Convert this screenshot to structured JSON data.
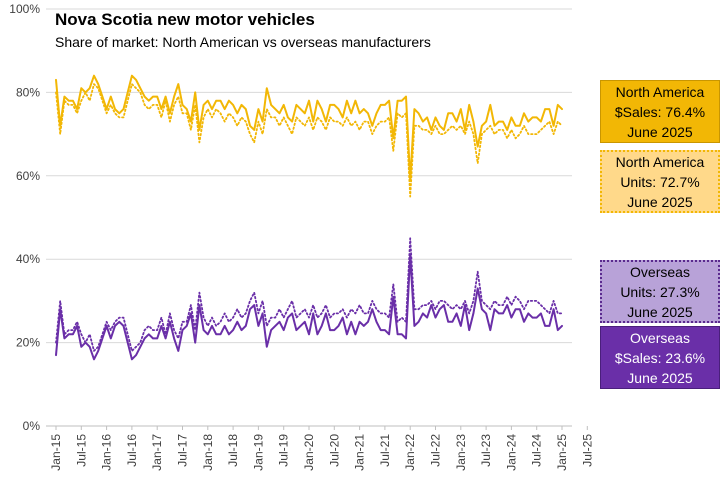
{
  "header": {
    "title": "Nova Scotia new motor vehicles",
    "subtitle": "Share of market: North American vs overseas manufacturers"
  },
  "boxes": {
    "na_sales": {
      "line1": "North America",
      "line2": "$Sales: 76.4%",
      "line3": "June 2025"
    },
    "na_units": {
      "line1": "North America",
      "line2": "Units: 72.7%",
      "line3": "June 2025"
    },
    "os_units": {
      "line1": "Overseas",
      "line2": "Units: 27.3%",
      "line3": "June 2025"
    },
    "os_sales": {
      "line1": "Overseas",
      "line2": "$Sales: 23.6%",
      "line3": "June 2025"
    }
  },
  "colors": {
    "na": "#F2B705",
    "overseas": "#6A2FA8",
    "grid": "#D9D9D9"
  },
  "chart_data": {
    "type": "line",
    "title": "Nova Scotia new motor vehicles",
    "subtitle": "Share of market: North American vs overseas manufacturers",
    "ylim": [
      0,
      100
    ],
    "yticks": [
      "0%",
      "20%",
      "40%",
      "60%",
      "80%",
      "100%"
    ],
    "ytick_values": [
      0,
      20,
      40,
      60,
      80,
      100
    ],
    "xlim": [
      "2015-01",
      "2025-07"
    ],
    "xticks": [
      "Jan-15",
      "Jul-15",
      "Jan-16",
      "Jul-16",
      "Jan-17",
      "Jul-17",
      "Jan-18",
      "Jul-18",
      "Jan-19",
      "Jul-19",
      "Jan-20",
      "Jul-20",
      "Jan-21",
      "Jul-21",
      "Jan-22",
      "Jul-22",
      "Jan-23",
      "Jul-23",
      "Jan-24",
      "Jul-24",
      "Jan-25",
      "Jul-25"
    ],
    "xlabel": "",
    "ylabel": "",
    "grid": true,
    "x_start": "2015-01",
    "series": [
      {
        "name": "North America $Sales",
        "style": "solid",
        "color": "#F2B705",
        "values": [
          83,
          72,
          79,
          78,
          78,
          76,
          81,
          80,
          81,
          84,
          82,
          79,
          76,
          79,
          76,
          75,
          76,
          80,
          84,
          83,
          81,
          79,
          78,
          79,
          79,
          76,
          79,
          75,
          79,
          82,
          77,
          76,
          73,
          80,
          71,
          77,
          78,
          76,
          78,
          78,
          76,
          78,
          77,
          75,
          77,
          76,
          72,
          71,
          76,
          73,
          81,
          77,
          76,
          75,
          77,
          74,
          73,
          77,
          76,
          75,
          78,
          73,
          78,
          76,
          73,
          77,
          77,
          76,
          74,
          78,
          75,
          78,
          75,
          76,
          75,
          72,
          75,
          77,
          77,
          78,
          69,
          78,
          78,
          79,
          59,
          76,
          75,
          73,
          74,
          71,
          74,
          72,
          71,
          75,
          75,
          73,
          76,
          71,
          77,
          73,
          67,
          72,
          73,
          77,
          72,
          73,
          73,
          71,
          74,
          72,
          72,
          75,
          73,
          74,
          74,
          73,
          76,
          76,
          72,
          77,
          76
        ]
      },
      {
        "name": "North America Units",
        "style": "dotted",
        "color": "#F2B705",
        "values": [
          80,
          70,
          78,
          77,
          77,
          75,
          78,
          80,
          78,
          82,
          81,
          78,
          75,
          77,
          75,
          74,
          74,
          78,
          82,
          81,
          80,
          77,
          76,
          77,
          77,
          74,
          78,
          73,
          77,
          79,
          75,
          75,
          71,
          77,
          68,
          74,
          76,
          74,
          76,
          75,
          73,
          75,
          74,
          72,
          74,
          73,
          70,
          68,
          73,
          70,
          76,
          74,
          74,
          72,
          74,
          72,
          70,
          74,
          73,
          72,
          74,
          71,
          74,
          73,
          71,
          74,
          73,
          73,
          72,
          74,
          72,
          73,
          71,
          73,
          73,
          70,
          72,
          73,
          73,
          74,
          66,
          75,
          74,
          75,
          55,
          72,
          72,
          71,
          71,
          70,
          72,
          70,
          70,
          71,
          72,
          71,
          72,
          70,
          73,
          70,
          63,
          70,
          71,
          72,
          70,
          71,
          71,
          69,
          71,
          69,
          70,
          72,
          70,
          70,
          70,
          71,
          72,
          73,
          70,
          73,
          72
        ]
      },
      {
        "name": "Overseas Units",
        "style": "dotted",
        "color": "#6A2FA8",
        "values": [
          20,
          30,
          22,
          23,
          23,
          25,
          22,
          20,
          22,
          18,
          19,
          22,
          25,
          23,
          25,
          26,
          26,
          22,
          18,
          19,
          20,
          23,
          24,
          23,
          23,
          26,
          22,
          27,
          23,
          21,
          25,
          25,
          29,
          23,
          32,
          26,
          24,
          26,
          24,
          25,
          27,
          25,
          26,
          28,
          26,
          27,
          30,
          32,
          27,
          30,
          24,
          26,
          26,
          28,
          26,
          28,
          30,
          26,
          27,
          28,
          26,
          29,
          26,
          27,
          29,
          26,
          27,
          27,
          28,
          26,
          28,
          27,
          29,
          27,
          27,
          30,
          28,
          27,
          27,
          26,
          34,
          25,
          26,
          25,
          45,
          28,
          28,
          29,
          29,
          30,
          28,
          30,
          30,
          29,
          28,
          29,
          28,
          30,
          27,
          30,
          37,
          30,
          29,
          28,
          30,
          29,
          29,
          31,
          29,
          31,
          30,
          28,
          30,
          30,
          30,
          29,
          28,
          27,
          30,
          27,
          27
        ]
      },
      {
        "name": "Overseas $Sales",
        "style": "solid",
        "color": "#6A2FA8",
        "values": [
          17,
          28,
          21,
          22,
          22,
          24,
          19,
          20,
          19,
          16,
          18,
          21,
          24,
          21,
          24,
          25,
          24,
          20,
          16,
          17,
          19,
          21,
          22,
          21,
          21,
          24,
          21,
          25,
          21,
          18,
          23,
          24,
          27,
          20,
          29,
          23,
          22,
          24,
          22,
          22,
          24,
          22,
          23,
          25,
          23,
          24,
          28,
          29,
          24,
          27,
          19,
          23,
          24,
          25,
          23,
          26,
          27,
          23,
          24,
          25,
          22,
          27,
          22,
          24,
          27,
          23,
          23,
          24,
          26,
          22,
          25,
          22,
          25,
          24,
          25,
          28,
          25,
          23,
          23,
          22,
          31,
          22,
          22,
          21,
          41,
          24,
          25,
          27,
          26,
          29,
          26,
          28,
          29,
          25,
          25,
          27,
          24,
          29,
          23,
          27,
          33,
          28,
          27,
          23,
          28,
          27,
          27,
          29,
          26,
          28,
          28,
          25,
          27,
          26,
          26,
          27,
          24,
          24,
          28,
          23,
          24
        ]
      }
    ]
  }
}
